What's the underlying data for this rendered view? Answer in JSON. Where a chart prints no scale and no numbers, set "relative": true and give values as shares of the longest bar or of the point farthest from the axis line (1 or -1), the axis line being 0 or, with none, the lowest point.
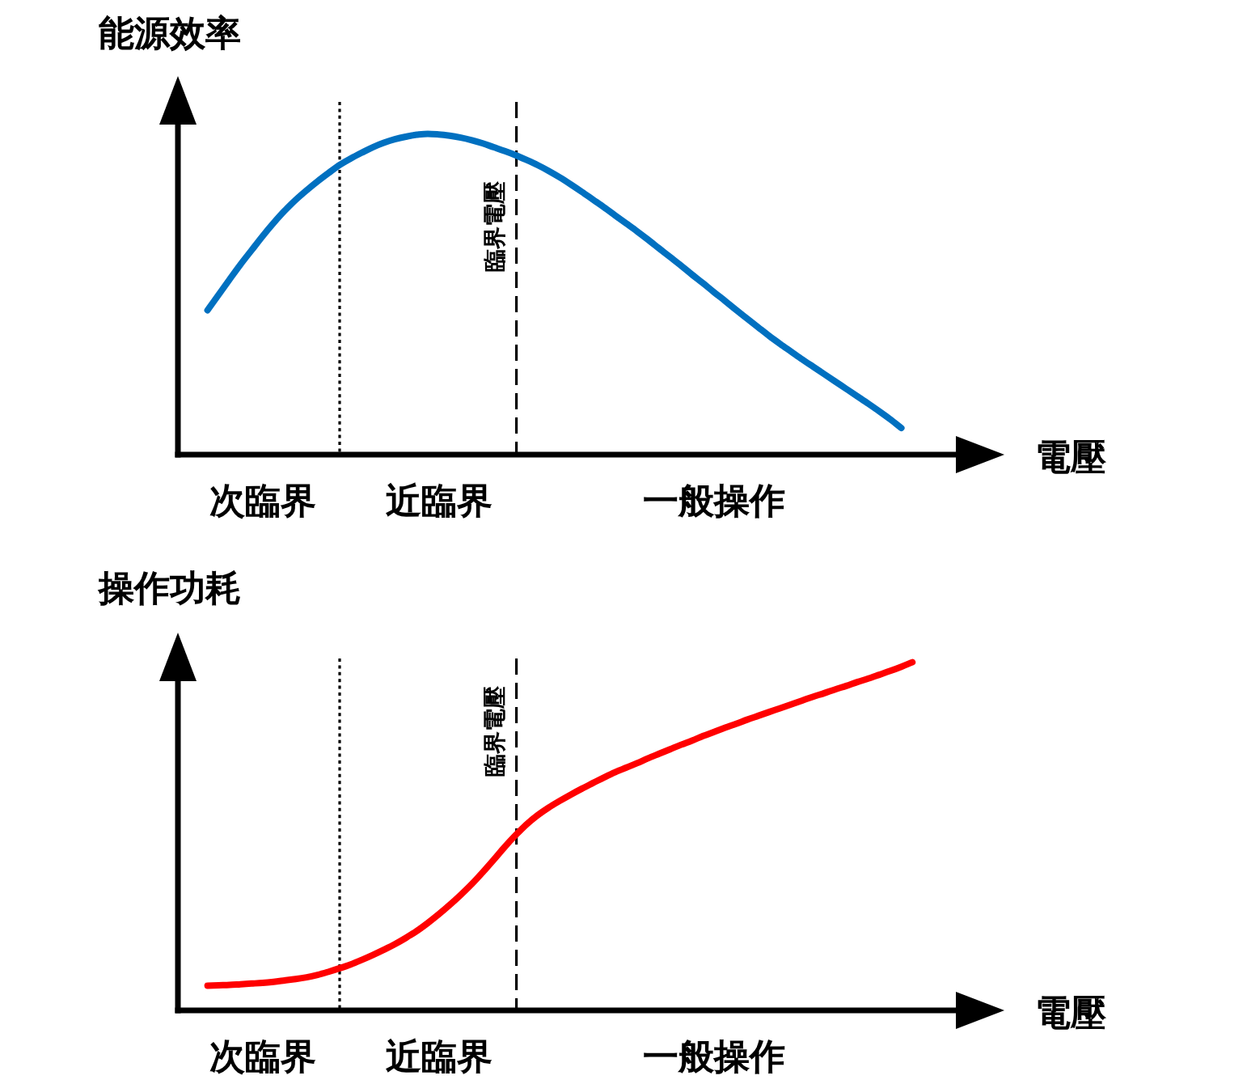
{
  "chart_data": [
    {
      "type": "line",
      "ylabel": "能源效率",
      "xlabel": "電壓",
      "relative": true,
      "annotations": [
        "臨界電壓"
      ],
      "categories": [
        null,
        null,
        null,
        null,
        null,
        "次臨界",
        null,
        null,
        null,
        null,
        null,
        null,
        null,
        null,
        null,
        null,
        null,
        null,
        null,
        null,
        null,
        "近臨界",
        null,
        null,
        null,
        null,
        null,
        null,
        null,
        null,
        null,
        null,
        null,
        null,
        null,
        null,
        null,
        null,
        null,
        null,
        null,
        null,
        null,
        null,
        null,
        null,
        "一般操作",
        null,
        null,
        null,
        null,
        null,
        null,
        null,
        null,
        null,
        null,
        null,
        null,
        null,
        null,
        null,
        null,
        null,
        null
      ],
      "series": [
        {
          "color": "#0070c0",
          "values": [
            0.45,
            0.498,
            0.546,
            0.593,
            0.637,
            0.681,
            0.722,
            0.76,
            0.794,
            0.824,
            0.852,
            0.878,
            0.903,
            0.923,
            0.941,
            0.958,
            0.972,
            0.983,
            0.991,
            0.997,
            1.0,
            0.998,
            0.994,
            0.988,
            0.98,
            0.97,
            0.958,
            0.946,
            0.933,
            0.918,
            0.902,
            0.884,
            0.864,
            0.842,
            0.819,
            0.795,
            0.771,
            0.746,
            0.721,
            0.696,
            0.67,
            0.643,
            0.616,
            0.589,
            0.561,
            0.534,
            0.506,
            0.479,
            0.451,
            0.424,
            0.397,
            0.37,
            0.345,
            0.321,
            0.297,
            0.274,
            0.251,
            0.228,
            0.205,
            0.182,
            0.159,
            0.135,
            0.11,
            0.083,
            null
          ]
        }
      ]
    },
    {
      "type": "line",
      "ylabel": "操作功耗",
      "xlabel": "電壓",
      "relative": true,
      "annotations": [
        "臨界電壓"
      ],
      "categories": [
        null,
        null,
        null,
        null,
        null,
        "次臨界",
        null,
        null,
        null,
        null,
        null,
        null,
        null,
        null,
        null,
        null,
        null,
        null,
        null,
        null,
        null,
        "近臨界",
        null,
        null,
        null,
        null,
        null,
        null,
        null,
        null,
        null,
        null,
        null,
        null,
        null,
        null,
        null,
        null,
        null,
        null,
        null,
        null,
        null,
        null,
        null,
        null,
        "一般操作",
        null,
        null,
        null,
        null,
        null,
        null,
        null,
        null,
        null,
        null,
        null,
        null,
        null,
        null,
        null,
        null,
        null,
        null
      ],
      "series": [
        {
          "color": "#ff0000",
          "values": [
            0.071,
            0.072,
            0.073,
            0.075,
            0.077,
            0.079,
            0.082,
            0.086,
            0.09,
            0.095,
            0.102,
            0.111,
            0.121,
            0.132,
            0.145,
            0.159,
            0.174,
            0.19,
            0.208,
            0.228,
            0.251,
            0.276,
            0.303,
            0.332,
            0.363,
            0.397,
            0.433,
            0.47,
            0.504,
            0.535,
            0.561,
            0.583,
            0.602,
            0.62,
            0.637,
            0.653,
            0.669,
            0.684,
            0.697,
            0.71,
            0.724,
            0.737,
            0.75,
            0.763,
            0.775,
            0.788,
            0.8,
            0.812,
            0.823,
            0.835,
            0.846,
            0.857,
            0.868,
            0.879,
            0.89,
            0.901,
            0.911,
            0.922,
            0.932,
            0.943,
            0.953,
            0.964,
            0.975,
            0.987,
            1.0
          ]
        }
      ]
    }
  ]
}
